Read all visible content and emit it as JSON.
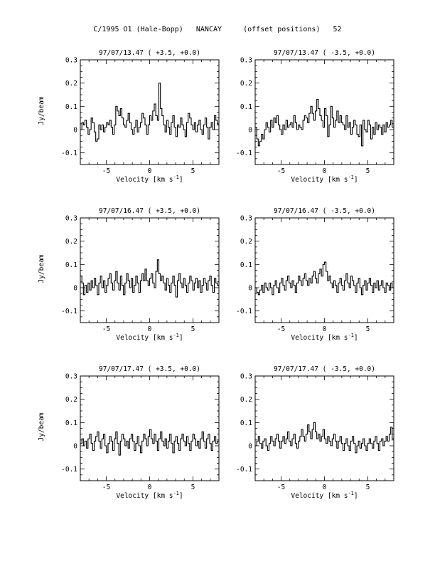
{
  "page_title": "C/1995 O1 (Hale-Bopp)   NANCAY     (offset positions)   52",
  "chart_data": [
    {
      "type": "line",
      "title": "97/07/13.47  ( +3.5, +0.0)",
      "xlabel": "Velocity [km s",
      "xlabel_sup": "-1",
      "xlabel_close": "]",
      "ylabel": "Jy/beam",
      "xlim": [
        -8,
        8
      ],
      "ylim": [
        -0.15,
        0.3
      ],
      "xticks_labeled": [
        "-5",
        "0",
        "5"
      ],
      "yticks_labeled": [
        "-0.1",
        "0",
        "0.1",
        "0.2",
        "0.3"
      ],
      "step": true,
      "series": [
        {
          "values": [
            0.0,
            0.03,
            0.02,
            0.04,
            0.01,
            -0.02,
            0.0,
            0.05,
            0.03,
            -0.01,
            -0.05,
            -0.04,
            0.02,
            0.0,
            0.02,
            -0.01,
            0.01,
            0.03,
            0.02,
            0.04,
            0.01,
            -0.02,
            0.02,
            0.1,
            0.08,
            0.06,
            0.09,
            0.05,
            0.02,
            0.01,
            0.04,
            0.07,
            0.03,
            0.0,
            -0.02,
            0.01,
            0.04,
            -0.01,
            0.01,
            0.03,
            0.07,
            0.05,
            0.02,
            -0.02,
            0.02,
            0.06,
            0.04,
            0.08,
            0.11,
            0.06,
            0.04,
            0.2,
            0.09,
            0.06,
            0.02,
            -0.01,
            0.04,
            0.01,
            -0.02,
            0.03,
            0.06,
            0.01,
            -0.03,
            0.02,
            0.01,
            0.05,
            0.02,
            0.0,
            -0.03,
            0.03,
            0.07,
            0.05,
            0.02,
            0.0,
            0.03,
            -0.01,
            0.02,
            0.04,
            0.0,
            -0.02,
            0.02,
            0.05,
            0.01,
            -0.04,
            0.01,
            0.03,
            0.0,
            0.06,
            0.04,
            0.02
          ]
        }
      ]
    },
    {
      "type": "line",
      "title": "97/07/13.47  ( -3.5, +0.0)",
      "xlabel": "Velocity [km s",
      "xlabel_sup": "-1",
      "xlabel_close": "]",
      "ylabel": "",
      "xlim": [
        -8,
        8
      ],
      "ylim": [
        -0.15,
        0.3
      ],
      "xticks_labeled": [
        "-5",
        "0",
        "5"
      ],
      "yticks_labeled": [
        "-0.1",
        "0",
        "0.1",
        "0.2",
        "0.3"
      ],
      "step": true,
      "series": [
        {
          "values": [
            0.01,
            -0.04,
            -0.07,
            -0.05,
            -0.02,
            -0.04,
            0.0,
            0.03,
            0.01,
            -0.01,
            0.04,
            0.01,
            0.05,
            0.03,
            0.06,
            0.02,
            0.0,
            -0.02,
            0.02,
            0.0,
            0.04,
            0.01,
            0.02,
            0.03,
            0.01,
            0.06,
            0.03,
            0.0,
            0.02,
            0.01,
            0.0,
            0.04,
            0.06,
            0.05,
            0.03,
            0.07,
            0.1,
            0.07,
            0.04,
            0.08,
            0.13,
            0.09,
            0.06,
            0.04,
            0.01,
            0.09,
            0.06,
            -0.03,
            0.02,
            0.1,
            0.05,
            0.01,
            0.04,
            0.08,
            0.03,
            0.06,
            0.03,
            0.02,
            0.0,
            0.06,
            0.01,
            0.03,
            -0.02,
            0.01,
            0.04,
            0.02,
            -0.02,
            -0.03,
            0.02,
            -0.07,
            0.04,
            0.0,
            -0.01,
            0.04,
            0.02,
            -0.04,
            0.01,
            -0.02,
            0.03,
            0.0,
            0.02,
            0.01,
            -0.02,
            0.02,
            -0.01,
            0.03,
            0.01,
            0.02,
            0.04,
            0.01
          ]
        }
      ]
    },
    {
      "type": "line",
      "title": "97/07/16.47  ( +3.5, +0.0)",
      "xlabel": "Velocity [km s",
      "xlabel_sup": "-1",
      "xlabel_close": "]",
      "ylabel": "Jy/beam",
      "xlim": [
        -8,
        8
      ],
      "ylim": [
        -0.15,
        0.3
      ],
      "xticks_labeled": [
        "-5",
        "0",
        "5"
      ],
      "yticks_labeled": [
        "-0.1",
        "0",
        "0.1",
        "0.2",
        "0.3"
      ],
      "step": true,
      "series": [
        {
          "values": [
            0.05,
            0.02,
            -0.03,
            0.01,
            -0.02,
            0.02,
            -0.01,
            0.03,
            0.0,
            0.04,
            0.01,
            -0.03,
            0.02,
            0.05,
            0.0,
            0.03,
            -0.02,
            0.01,
            0.04,
            0.06,
            0.02,
            -0.01,
            0.03,
            0.07,
            0.02,
            -0.01,
            0.05,
            0.01,
            -0.03,
            0.02,
            0.06,
            0.03,
            0.0,
            0.04,
            -0.02,
            0.01,
            0.05,
            0.02,
            -0.02,
            0.03,
            0.06,
            0.03,
            0.08,
            0.03,
            0.01,
            0.04,
            0.06,
            0.02,
            0.0,
            0.07,
            0.12,
            0.06,
            0.03,
            0.05,
            0.02,
            -0.01,
            0.04,
            0.01,
            -0.02,
            0.02,
            0.05,
            0.01,
            -0.04,
            0.03,
            0.06,
            0.02,
            0.0,
            0.04,
            0.01,
            -0.02,
            0.02,
            0.05,
            0.03,
            -0.01,
            0.02,
            0.04,
            0.0,
            0.03,
            -0.02,
            0.01,
            0.04,
            0.02,
            -0.01,
            0.03,
            0.05,
            0.01,
            -0.02,
            0.04,
            0.02,
            0.01
          ]
        }
      ]
    },
    {
      "type": "line",
      "title": "97/07/16.47  ( -3.5, +0.0)",
      "xlabel": "Velocity [km s",
      "xlabel_sup": "-1",
      "xlabel_close": "]",
      "ylabel": "",
      "xlim": [
        -8,
        8
      ],
      "ylim": [
        -0.15,
        0.3
      ],
      "xticks_labeled": [
        "-5",
        "0",
        "5"
      ],
      "yticks_labeled": [
        "-0.1",
        "0",
        "0.1",
        "0.2",
        "0.3"
      ],
      "step": true,
      "series": [
        {
          "values": [
            0.0,
            -0.02,
            -0.03,
            -0.01,
            0.01,
            -0.02,
            0.02,
            0.0,
            -0.01,
            0.02,
            0.0,
            -0.03,
            0.01,
            0.03,
            0.0,
            -0.02,
            0.02,
            0.04,
            0.01,
            -0.01,
            0.03,
            0.05,
            0.02,
            0.0,
            0.03,
            0.01,
            -0.02,
            0.02,
            0.05,
            0.03,
            0.01,
            0.04,
            0.06,
            0.03,
            0.01,
            0.04,
            0.02,
            0.05,
            0.07,
            0.04,
            0.02,
            0.06,
            0.08,
            0.05,
            0.1,
            0.11,
            0.07,
            0.03,
            0.05,
            0.02,
            0.0,
            0.03,
            0.01,
            -0.02,
            0.02,
            0.04,
            0.01,
            -0.01,
            0.03,
            0.06,
            0.02,
            0.0,
            0.05,
            0.03,
            0.01,
            -0.02,
            0.02,
            0.04,
            0.0,
            -0.03,
            0.01,
            0.03,
            -0.01,
            0.02,
            0.04,
            0.01,
            -0.02,
            0.02,
            0.0,
            0.03,
            -0.01,
            0.01,
            0.03,
            0.0,
            -0.02,
            0.02,
            0.01,
            -0.01,
            0.02,
            0.0
          ]
        }
      ]
    },
    {
      "type": "line",
      "title": "97/07/17.47  ( +3.5, +0.0)",
      "xlabel": "Velocity [km s",
      "xlabel_sup": "-1",
      "xlabel_close": "]",
      "ylabel": "Jy/beam",
      "xlim": [
        -8,
        8
      ],
      "ylim": [
        -0.15,
        0.3
      ],
      "xticks_labeled": [
        "-5",
        "0",
        "5"
      ],
      "yticks_labeled": [
        "-0.1",
        "0",
        "0.1",
        "0.2",
        "0.3"
      ],
      "step": true,
      "series": [
        {
          "values": [
            0.01,
            0.03,
            0.0,
            0.02,
            -0.01,
            0.03,
            0.05,
            0.01,
            -0.02,
            0.02,
            0.04,
            0.06,
            0.02,
            -0.01,
            0.03,
            0.05,
            0.0,
            -0.03,
            0.01,
            0.04,
            0.02,
            -0.02,
            0.03,
            0.06,
            0.01,
            -0.04,
            0.02,
            0.05,
            0.03,
            0.0,
            0.02,
            -0.01,
            0.03,
            0.05,
            0.02,
            -0.02,
            0.01,
            0.04,
            0.0,
            -0.03,
            0.02,
            0.05,
            0.03,
            0.0,
            0.04,
            0.07,
            0.03,
            0.01,
            0.05,
            0.02,
            -0.02,
            0.03,
            0.06,
            0.02,
            0.0,
            0.03,
            -0.01,
            0.02,
            0.05,
            0.01,
            -0.03,
            0.02,
            0.04,
            0.01,
            -0.02,
            0.03,
            0.05,
            0.02,
            0.0,
            0.04,
            0.01,
            -0.02,
            0.02,
            0.05,
            0.03,
            0.0,
            0.02,
            -0.01,
            0.03,
            0.06,
            0.02,
            -0.01,
            0.03,
            0.05,
            0.01,
            -0.02,
            0.02,
            0.04,
            0.01,
            0.02
          ]
        }
      ]
    },
    {
      "type": "line",
      "title": "97/07/17.47  ( -3.5, +0.0)",
      "xlabel": "Velocity [km s",
      "xlabel_sup": "-1",
      "xlabel_close": "]",
      "ylabel": "",
      "xlim": [
        -8,
        8
      ],
      "ylim": [
        -0.15,
        0.3
      ],
      "xticks_labeled": [
        "-5",
        "0",
        "5"
      ],
      "yticks_labeled": [
        "-0.1",
        "0",
        "0.1",
        "0.2",
        "0.3"
      ],
      "step": true,
      "series": [
        {
          "values": [
            0.0,
            0.02,
            0.04,
            0.01,
            -0.01,
            0.02,
            0.03,
            0.0,
            -0.02,
            0.01,
            0.04,
            0.02,
            0.0,
            0.03,
            0.05,
            0.02,
            -0.01,
            0.02,
            0.04,
            0.01,
            0.03,
            0.06,
            0.02,
            0.0,
            0.03,
            0.05,
            0.01,
            -0.01,
            0.02,
            0.04,
            0.07,
            0.04,
            0.02,
            0.05,
            0.09,
            0.06,
            0.03,
            0.07,
            0.1,
            0.06,
            0.03,
            0.05,
            0.02,
            0.04,
            0.07,
            0.03,
            0.01,
            0.04,
            0.02,
            0.0,
            0.03,
            0.05,
            0.02,
            -0.01,
            0.02,
            0.04,
            0.01,
            -0.02,
            0.01,
            0.03,
            0.0,
            -0.02,
            0.02,
            0.04,
            0.01,
            -0.03,
            0.0,
            0.02,
            -0.01,
            0.01,
            0.03,
            0.0,
            -0.02,
            0.01,
            0.03,
            0.01,
            -0.01,
            0.02,
            0.04,
            0.01,
            -0.02,
            0.02,
            0.03,
            0.0,
            0.02,
            0.04,
            0.02,
            0.05,
            0.08,
            0.03
          ]
        }
      ]
    }
  ]
}
